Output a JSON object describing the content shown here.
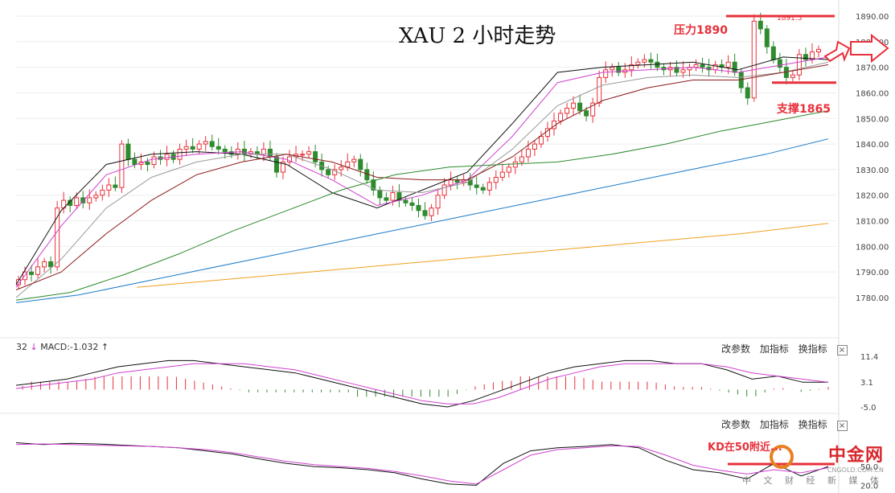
{
  "title": "XAU 2 小时走势",
  "annotations": {
    "resistance": "压力1890",
    "support": "支撑1865",
    "peak": "1891.3",
    "kd_note": "KD在50附近..."
  },
  "toolbar": {
    "modify": "改参数",
    "add": "加指标",
    "switch": "换指标",
    "close": "×"
  },
  "macd": {
    "prefix": "32",
    "label": "MACD:-1.032",
    "arrow_down": "↓",
    "arrow_up": "↑"
  },
  "watermark": {
    "logo": "中金网",
    "url": "CNGOLD.COM.CN",
    "cn": "中 文 财 经 新 媒 体"
  },
  "colors": {
    "up": "#e8303a",
    "down": "#2e8b2e",
    "ma5": "#111111",
    "ma10": "#d040d0",
    "ma20": "#999999",
    "ma30": "#8b1a1a",
    "ma60": "#2a8a2a",
    "ma120": "#1a7ac8",
    "ma250": "#f0a020",
    "resistance": "#e8303a"
  },
  "chart_data": [
    {
      "type": "candlestick",
      "title": "XAU 2 小时走势",
      "ylim": [
        1772,
        1893
      ],
      "yticks": [
        1780,
        1790,
        1800,
        1810,
        1820,
        1830,
        1840,
        1850,
        1860,
        1870,
        1880,
        1890
      ],
      "ytick_labels": [
        "1780.00",
        "1790.00",
        "1800.00",
        "1810.00",
        "1820.00",
        "1830.00",
        "1840.00",
        "1850.00",
        "1860.00",
        "1870.00",
        "1880.00",
        "1890.00"
      ],
      "resistance_level": 1890,
      "support_level": 1865,
      "close": [
        1787,
        1790,
        1789,
        1792,
        1794,
        1792,
        1815,
        1818,
        1816,
        1819,
        1817,
        1819,
        1820,
        1822,
        1824,
        1823,
        1840,
        1834,
        1832,
        1833,
        1832,
        1835,
        1834,
        1836,
        1834,
        1838,
        1839,
        1838,
        1840,
        1841,
        1839,
        1838,
        1837,
        1836,
        1838,
        1836,
        1837,
        1836,
        1838,
        1835,
        1829,
        1833,
        1835,
        1836,
        1836,
        1837,
        1833,
        1830,
        1828,
        1830,
        1831,
        1833,
        1834,
        1830,
        1826,
        1822,
        1819,
        1818,
        1821,
        1818,
        1817,
        1816,
        1814,
        1812,
        1815,
        1820,
        1824,
        1826,
        1825,
        1826,
        1824,
        1823,
        1822,
        1825,
        1827,
        1829,
        1831,
        1833,
        1835,
        1838,
        1840,
        1843,
        1846,
        1849,
        1852,
        1854,
        1856,
        1853,
        1851,
        1856,
        1866,
        1869,
        1870,
        1868,
        1869,
        1871,
        1872,
        1873,
        1872,
        1870,
        1869,
        1870,
        1868,
        1869,
        1870,
        1871,
        1870,
        1869,
        1871,
        1870,
        1872,
        1868,
        1862,
        1858,
        1888,
        1885,
        1878,
        1873,
        1870,
        1866,
        1867,
        1875,
        1873,
        1876,
        1877
      ],
      "ma_series": [
        {
          "name": "MA5",
          "values": [
            1785,
            1814,
            1832,
            1836,
            1837,
            1836,
            1832,
            1821,
            1815,
            1822,
            1829,
            1848,
            1868,
            1870,
            1871,
            1872,
            1869,
            1874,
            1873
          ]
        },
        {
          "name": "MA10",
          "values": [
            1784,
            1808,
            1828,
            1834,
            1836,
            1837,
            1834,
            1826,
            1816,
            1820,
            1826,
            1843,
            1864,
            1868,
            1869,
            1870,
            1868,
            1871,
            1874
          ]
        },
        {
          "name": "MA20",
          "values": [
            1780,
            1795,
            1815,
            1827,
            1833,
            1836,
            1836,
            1830,
            1822,
            1821,
            1825,
            1838,
            1855,
            1863,
            1866,
            1867,
            1866,
            1868,
            1872
          ]
        },
        {
          "name": "MA30",
          "values": [
            1783,
            1790,
            1805,
            1818,
            1828,
            1833,
            1836,
            1833,
            1827,
            1826,
            1826,
            1835,
            1848,
            1857,
            1862,
            1865,
            1865,
            1868,
            1871
          ]
        },
        {
          "name": "MA60",
          "values": [
            1779,
            1782,
            1789,
            1797,
            1806,
            1814,
            1822,
            1828,
            1831,
            1832,
            1833,
            1836,
            1840,
            1845,
            1849,
            1853
          ]
        },
        {
          "name": "MA120",
          "values": [
            1778,
            1781,
            1786,
            1791,
            1796,
            1801,
            1806,
            1811,
            1816,
            1821,
            1826,
            1831,
            1836,
            1842
          ]
        },
        {
          "name": "MA250",
          "values": [
            1784,
            1787,
            1790,
            1793,
            1796,
            1799,
            1802,
            1805,
            1809
          ]
        }
      ]
    },
    {
      "type": "line",
      "title": "MACD",
      "yticks": [
        11.4,
        3.1,
        -5.0
      ],
      "ytick_labels": [
        "11.4",
        "3.1",
        "-5.0"
      ],
      "ylim": [
        -6,
        12
      ],
      "series": [
        {
          "name": "DIF",
          "values": [
            2,
            3,
            4,
            6,
            8,
            9,
            10,
            10,
            9,
            8,
            7,
            6,
            4,
            2,
            0,
            -2,
            -4,
            -5,
            -3,
            0,
            3,
            6,
            8,
            9,
            10,
            10,
            9,
            9,
            7,
            4,
            5,
            3,
            3
          ]
        },
        {
          "name": "DEA",
          "values": [
            1,
            2,
            3,
            4,
            6,
            7,
            8,
            9,
            9,
            9,
            8,
            7,
            5,
            3,
            1,
            -1,
            -3,
            -4,
            -4,
            -2,
            1,
            4,
            6,
            8,
            9,
            9,
            9,
            9,
            8,
            6,
            5,
            4,
            3
          ]
        }
      ]
    },
    {
      "type": "line",
      "title": "KD",
      "yticks": [
        50.0,
        20.0
      ],
      "ytick_labels": [
        "50.0",
        "20.0"
      ],
      "ylim": [
        18,
        95
      ],
      "series": [
        {
          "name": "K",
          "values": [
            88,
            85,
            87,
            86,
            84,
            82,
            80,
            75,
            70,
            62,
            55,
            50,
            48,
            45,
            40,
            30,
            22,
            20,
            55,
            75,
            80,
            82,
            85,
            80,
            60,
            45,
            40,
            30,
            55,
            35,
            50
          ]
        },
        {
          "name": "D",
          "values": [
            85,
            86,
            85,
            84,
            83,
            82,
            80,
            77,
            72,
            65,
            58,
            53,
            50,
            47,
            42,
            35,
            27,
            22,
            45,
            68,
            77,
            80,
            83,
            82,
            68,
            52,
            44,
            38,
            45,
            40,
            48
          ]
        }
      ]
    }
  ]
}
